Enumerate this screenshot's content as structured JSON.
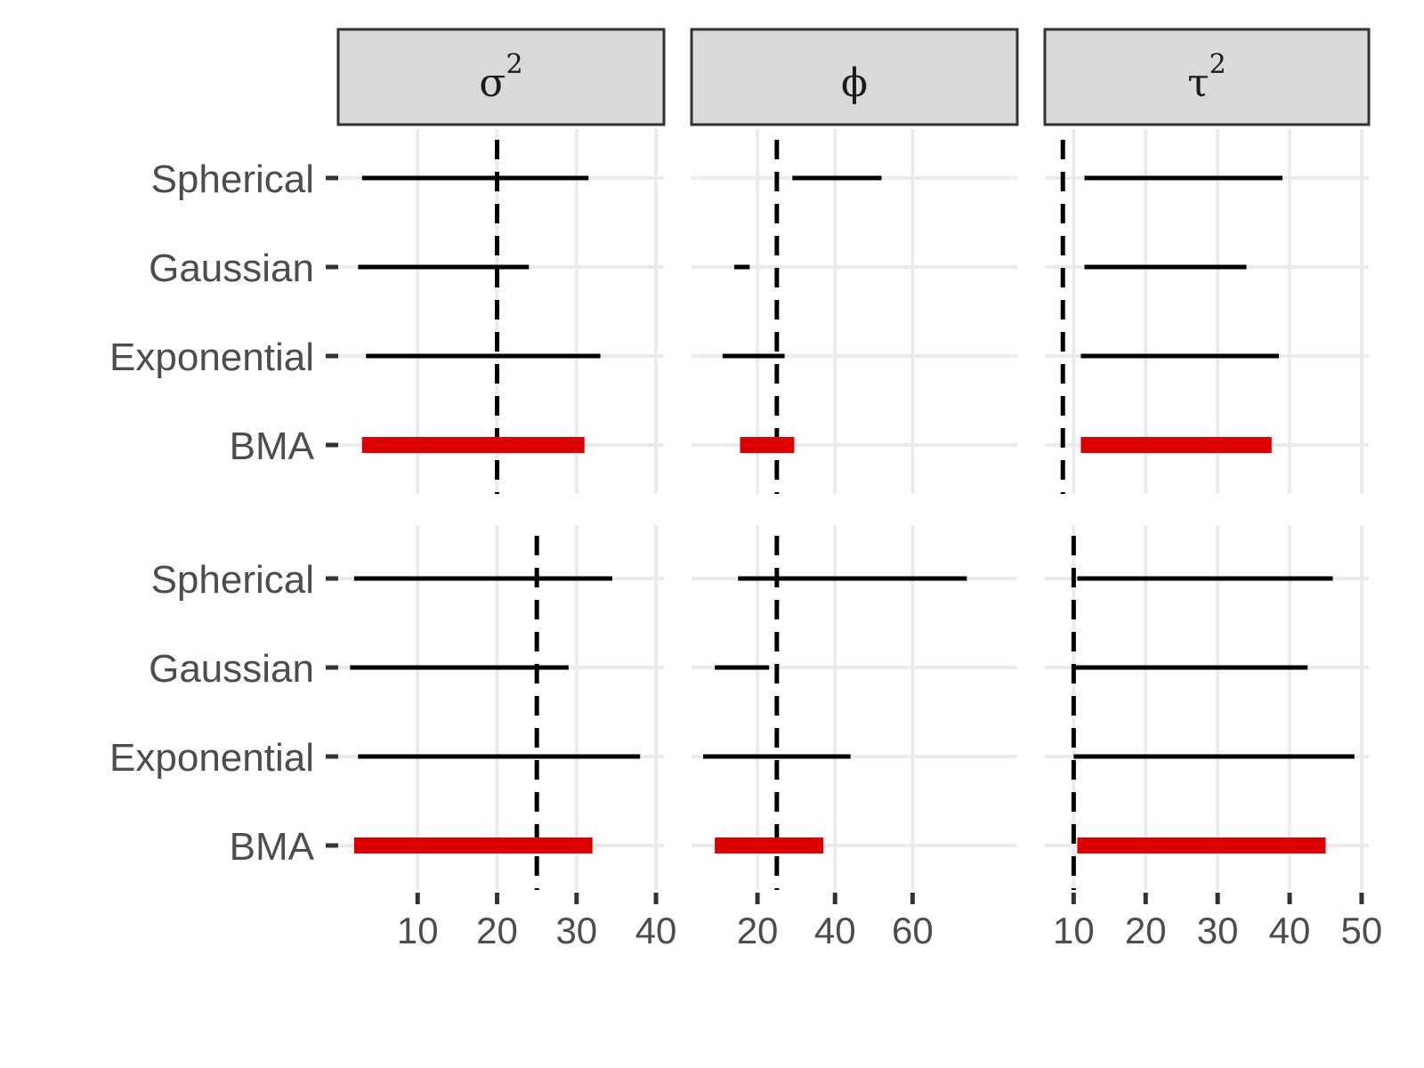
{
  "chart_data": {
    "type": "interval",
    "facet_columns": [
      {
        "key": "sigma2",
        "label": "σ",
        "sup": "2",
        "xlim": [
          0,
          41
        ],
        "ticks": [
          10,
          20,
          30,
          40
        ],
        "tick_labels": [
          "10",
          "20",
          "30",
          "40"
        ]
      },
      {
        "key": "phi",
        "label": "ϕ",
        "sup": "",
        "xlim": [
          3,
          87
        ],
        "ticks": [
          20,
          40,
          60
        ],
        "tick_labels": [
          "20",
          "40",
          "60"
        ]
      },
      {
        "key": "tau2",
        "label": "τ",
        "sup": "2",
        "xlim": [
          6,
          51
        ],
        "ticks": [
          10,
          20,
          30,
          40,
          50
        ],
        "tick_labels": [
          "10",
          "20",
          "30",
          "40",
          "50"
        ]
      }
    ],
    "categories": [
      "Spherical",
      "Gaussian",
      "Exponential",
      "BMA"
    ],
    "highlight": {
      "category": "BMA",
      "color": "#dd0000"
    },
    "line_color": "#000000",
    "grid": true,
    "rows": [
      {
        "reference": {
          "sigma2": 20,
          "phi": 25,
          "tau2": 8.5
        },
        "intervals": {
          "sigma2": {
            "Spherical": [
              3,
              31.5
            ],
            "Gaussian": [
              2.5,
              24
            ],
            "Exponential": [
              3.5,
              33
            ],
            "BMA": [
              3,
              31
            ]
          },
          "phi": {
            "Spherical": [
              29,
              52
            ],
            "Gaussian": [
              14,
              18
            ],
            "Exponential": [
              11,
              27
            ],
            "BMA": [
              15.5,
              29.5
            ]
          },
          "tau2": {
            "Spherical": [
              11.5,
              39
            ],
            "Gaussian": [
              11.5,
              34
            ],
            "Exponential": [
              11,
              38.5
            ],
            "BMA": [
              11,
              37.5
            ]
          }
        }
      },
      {
        "reference": {
          "sigma2": 25,
          "phi": 25,
          "tau2": 10
        },
        "intervals": {
          "sigma2": {
            "Spherical": [
              2,
              34.5
            ],
            "Gaussian": [
              1.5,
              29
            ],
            "Exponential": [
              2.5,
              38
            ],
            "BMA": [
              2,
              32
            ]
          },
          "phi": {
            "Spherical": [
              15,
              74
            ],
            "Gaussian": [
              9,
              23
            ],
            "Exponential": [
              6,
              44
            ],
            "BMA": [
              9,
              37
            ]
          },
          "tau2": {
            "Spherical": [
              10.5,
              46
            ],
            "Gaussian": [
              10,
              42.5
            ],
            "Exponential": [
              10,
              49
            ],
            "BMA": [
              10.5,
              45
            ]
          }
        }
      }
    ]
  }
}
